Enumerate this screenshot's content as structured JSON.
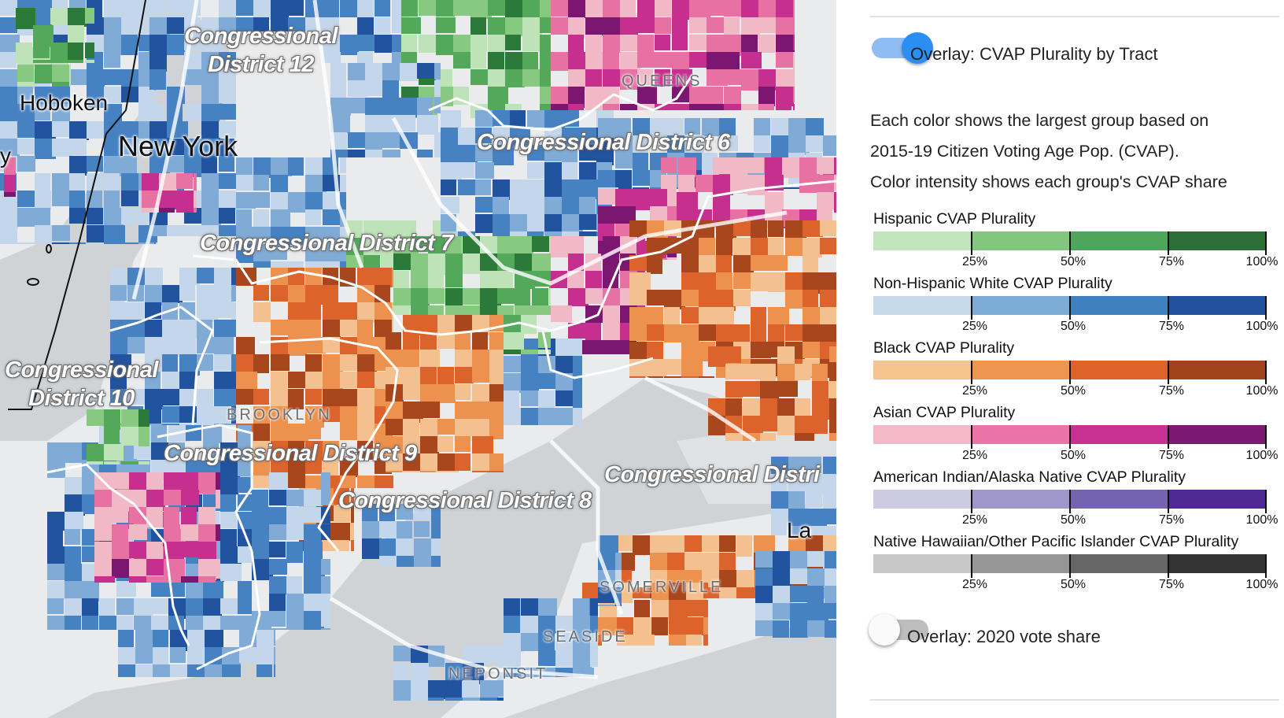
{
  "map": {
    "districts": [
      {
        "id": "cd12",
        "lines": [
          "Congressional",
          "District 12"
        ]
      },
      {
        "id": "cd6",
        "lines": [
          "Congressional District 6"
        ]
      },
      {
        "id": "cd7",
        "lines": [
          "Congressional District 7"
        ]
      },
      {
        "id": "cd10",
        "lines": [
          "Congressional",
          "District 10"
        ]
      },
      {
        "id": "cd9",
        "lines": [
          "Congressional District 9"
        ]
      },
      {
        "id": "cd8",
        "lines": [
          "Congressional District 8"
        ]
      },
      {
        "id": "cd5",
        "lines": [
          "Congressional Distri"
        ]
      }
    ],
    "places": {
      "hoboken": "Hoboken",
      "new_york": "New York",
      "y_partial": "y",
      "la_partial": "La"
    },
    "neighborhoods": {
      "queens": "QUEENS",
      "brooklyn": "BROOKLYN",
      "somerville": "SOMERVILLE",
      "seaside": "SEASIDE",
      "neponsit": "NEPONSIT"
    },
    "colors": {
      "water": "#cfd3d6",
      "land": "#e9ebec",
      "road": "#ffffff",
      "hispanic": [
        "#bfe3b8",
        "#88c982",
        "#53a85a",
        "#2c7a3a"
      ],
      "white": [
        "#c3d6ea",
        "#80abd6",
        "#4682c2",
        "#21539f"
      ],
      "black": [
        "#f4c090",
        "#ec924e",
        "#dc632c",
        "#a8461d"
      ],
      "asian": [
        "#f1b8c6",
        "#e871a4",
        "#c5308e",
        "#7b1771"
      ]
    }
  },
  "panel": {
    "toggle1": {
      "label": "Overlay: CVAP Plurality by Tract",
      "state": "on"
    },
    "description": [
      "Each color shows the largest group based on",
      "2015-19 Citizen Voting Age Pop. (CVAP).",
      "Color intensity shows each group's CVAP share"
    ],
    "legend": [
      {
        "title": "Hispanic CVAP Plurality",
        "colors": [
          "#c1e5bb",
          "#82c77d",
          "#4fa55a",
          "#2b6f36"
        ]
      },
      {
        "title": "Non-Hispanic White CVAP Plurality",
        "colors": [
          "#c6d9ea",
          "#7dacd7",
          "#3f80c1",
          "#21519d"
        ]
      },
      {
        "title": "Black CVAP Plurality",
        "colors": [
          "#f5c38e",
          "#ef9552",
          "#de6329",
          "#a2441b"
        ]
      },
      {
        "title": "Asian CVAP Plurality",
        "colors": [
          "#f3b9c6",
          "#ea74a7",
          "#c63192",
          "#7a1872"
        ]
      },
      {
        "title": "American Indian/Alaska Native CVAP Plurality",
        "colors": [
          "#cdcbe4",
          "#9f97cb",
          "#7363b0",
          "#4f2a91"
        ]
      },
      {
        "title": "Native Hawaiian/Other Pacific Islander CVAP Plurality",
        "colors": [
          "#c8c8c8",
          "#969696",
          "#666666",
          "#333333"
        ]
      }
    ],
    "ticks": [
      "25%",
      "50%",
      "75%",
      "100%"
    ],
    "toggle2": {
      "label": "Overlay: 2020 vote share",
      "state": "off"
    }
  }
}
